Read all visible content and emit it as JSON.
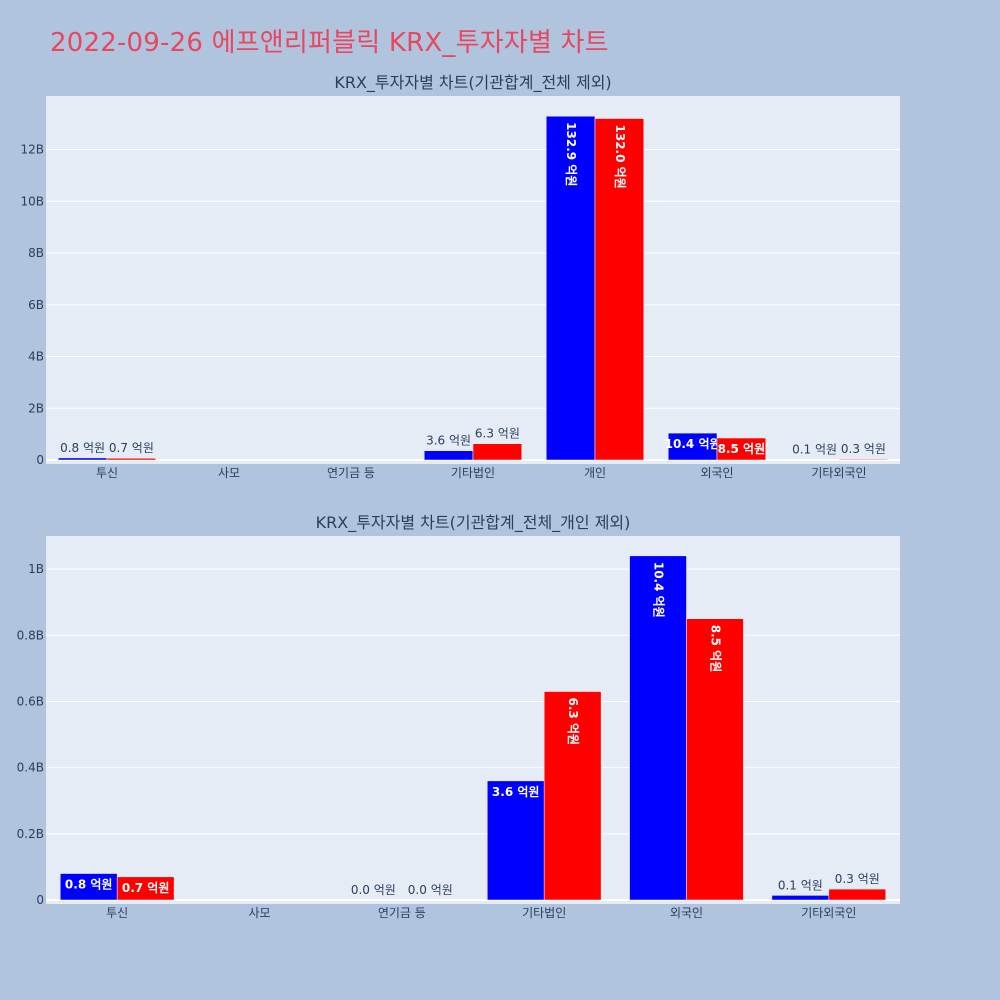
{
  "page_title": "2022-09-26 에프앤리퍼블릭 KRX_투자자별 차트",
  "colors": {
    "buy": "#0000ff",
    "sell": "#ff0000",
    "plot_bg": "#e5ecf6",
    "page_bg": "#b0c4de",
    "title": "#e8475f"
  },
  "chart_data": [
    {
      "type": "bar",
      "title": "KRX_투자자별 차트(기관합계_전체 제외)",
      "categories": [
        "투신",
        "사모",
        "연기금 등",
        "기타법인",
        "개인",
        "외국인",
        "기타외국인"
      ],
      "series": [
        {
          "values": [
            0.08,
            0,
            0,
            0.36,
            13.29,
            1.04,
            0.01
          ],
          "labels": [
            "0.8 억원",
            "",
            "",
            "3.6 억원",
            "132.9 억원",
            "10.4 억원",
            "0.1 억원"
          ]
        },
        {
          "values": [
            0.07,
            0,
            0,
            0.63,
            13.2,
            0.85,
            0.03
          ],
          "labels": [
            "0.7 억원",
            "",
            "",
            "6.3 억원",
            "132.0 억원",
            "8.5 억원",
            "0.3 억원"
          ]
        }
      ],
      "yticks": [
        "0",
        "2B",
        "4B",
        "6B",
        "8B",
        "10B",
        "12B"
      ],
      "ylim": [
        0,
        14.07
      ],
      "grid": true,
      "legend": "none"
    },
    {
      "type": "bar",
      "title": "KRX_투자자별 차트(기관합계_전체_개인 제외)",
      "categories": [
        "투신",
        "사모",
        "연기금 등",
        "기타법인",
        "외국인",
        "기타외국인"
      ],
      "series": [
        {
          "values": [
            0.08,
            0,
            0.0,
            0.36,
            1.04,
            0.014
          ],
          "labels": [
            "0.8 억원",
            "",
            "0.0 억원",
            "3.6 억원",
            "10.4 억원",
            "0.1 억원"
          ]
        },
        {
          "values": [
            0.07,
            0,
            0.0,
            0.63,
            0.85,
            0.033
          ],
          "labels": [
            "0.7 억원",
            "",
            "0.0 억원",
            "6.3 억원",
            "8.5 억원",
            "0.3 억원"
          ]
        }
      ],
      "yticks": [
        "0",
        "0.2B",
        "0.4B",
        "0.6B",
        "0.8B",
        "1B"
      ],
      "ylim": [
        0,
        1.1
      ],
      "grid": true,
      "legend": "none"
    }
  ]
}
